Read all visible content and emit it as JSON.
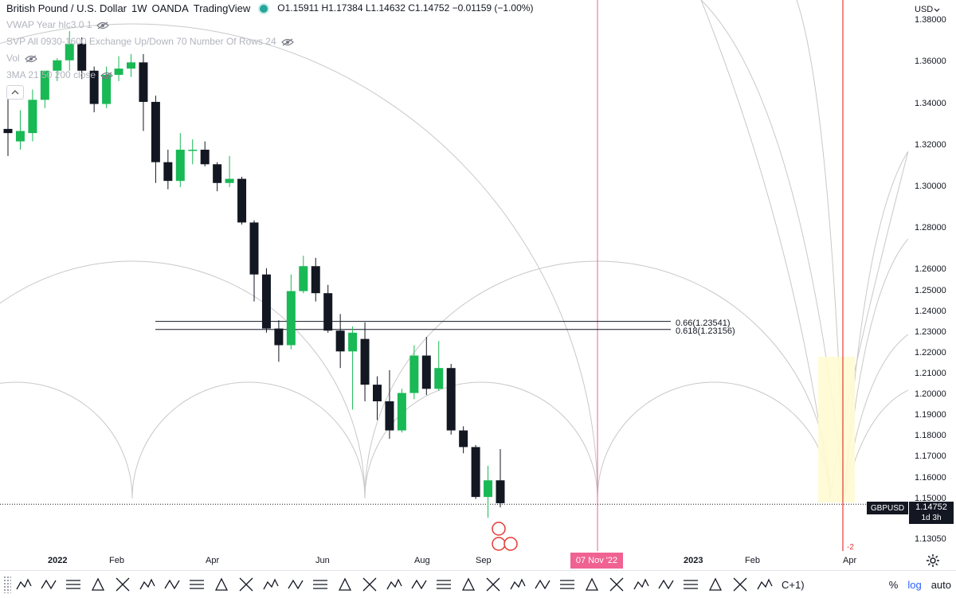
{
  "legend": {
    "title": "British Pound / U.S. Dollar",
    "interval": "1W",
    "broker": "OANDA",
    "platform": "TradingView",
    "ohlc": "O1.15911  H1.17384  L1.14632  C1.14752  −0.01159 (−1.00%)",
    "indicators": [
      "VWAP Year hlc3 0 1",
      "SVP All 0930-1600 Exchange Up/Down 70 Number Of Rows 24",
      "Vol",
      "3MA 21 50 200 close"
    ]
  },
  "currency": "USD",
  "symbol_badge": "GBPUSD",
  "last_price": "1.14752",
  "countdown": "1d 3h",
  "cursor_date": "07 Nov '22",
  "minus_label": "-2",
  "fib_levels": [
    {
      "label": "0.66(1.23541)",
      "value": 1.23541
    },
    {
      "label": "0.618(1.23156)",
      "value": 1.23156
    }
  ],
  "toolbar": {
    "tools": [
      "xabcd-1-5",
      "wxy-pattern",
      "wxyz-pattern",
      "abcd-pattern",
      "abc-pattern",
      "path-tool",
      "fib-channel",
      "rectangle",
      "callout",
      "horizontal-line",
      "trend-line",
      "pitchfork",
      "gann-fan",
      "elliott-wave",
      "fib-circles",
      "fib-spiral",
      "box",
      "long-position",
      "time-cycles",
      "fib-fan",
      "brush",
      "polyline",
      "arrow",
      "eraser",
      "projection",
      "zigzag",
      "candle-pattern",
      "head-shoulders",
      "bezier",
      "cycle",
      "triangle-pattern"
    ],
    "partial_label": "C+1)",
    "percent_label": "%",
    "log_label": "log",
    "auto_label": "auto"
  },
  "chart_data": {
    "type": "candlestick",
    "price_scale": {
      "min": 1.125,
      "max": 1.39,
      "ticks": [
        "1.38000",
        "1.36000",
        "1.34000",
        "1.32000",
        "1.30000",
        "1.28000",
        "1.26000",
        "1.25000",
        "1.24000",
        "1.23000",
        "1.22000",
        "1.21000",
        "1.20000",
        "1.19000",
        "1.18000",
        "1.17000",
        "1.16000",
        "1.15000",
        "1.14000",
        "1.13050"
      ]
    },
    "time_labels": [
      {
        "label": "2022",
        "bold": true
      },
      {
        "label": "Feb",
        "bold": false
      },
      {
        "label": "Apr",
        "bold": false
      },
      {
        "label": "Jun",
        "bold": false
      },
      {
        "label": "Aug",
        "bold": false
      },
      {
        "label": "Sep",
        "bold": false
      },
      {
        "label": "2023",
        "bold": true
      },
      {
        "label": "Feb",
        "bold": false
      },
      {
        "label": "Apr",
        "bold": false
      }
    ],
    "candles": [
      {
        "o": 1.328,
        "h": 1.343,
        "l": 1.315,
        "c": 1.326
      },
      {
        "o": 1.322,
        "h": 1.337,
        "l": 1.318,
        "c": 1.327
      },
      {
        "o": 1.326,
        "h": 1.347,
        "l": 1.322,
        "c": 1.342
      },
      {
        "o": 1.342,
        "h": 1.356,
        "l": 1.338,
        "c": 1.356
      },
      {
        "o": 1.356,
        "h": 1.362,
        "l": 1.351,
        "c": 1.361
      },
      {
        "o": 1.361,
        "h": 1.375,
        "l": 1.356,
        "c": 1.369
      },
      {
        "o": 1.369,
        "h": 1.372,
        "l": 1.352,
        "c": 1.356
      },
      {
        "o": 1.356,
        "h": 1.358,
        "l": 1.336,
        "c": 1.34
      },
      {
        "o": 1.34,
        "h": 1.358,
        "l": 1.338,
        "c": 1.354
      },
      {
        "o": 1.354,
        "h": 1.363,
        "l": 1.351,
        "c": 1.357
      },
      {
        "o": 1.357,
        "h": 1.364,
        "l": 1.353,
        "c": 1.36
      },
      {
        "o": 1.36,
        "h": 1.364,
        "l": 1.327,
        "c": 1.341
      },
      {
        "o": 1.341,
        "h": 1.344,
        "l": 1.302,
        "c": 1.312
      },
      {
        "o": 1.312,
        "h": 1.318,
        "l": 1.299,
        "c": 1.303
      },
      {
        "o": 1.303,
        "h": 1.326,
        "l": 1.3,
        "c": 1.318
      },
      {
        "o": 1.318,
        "h": 1.323,
        "l": 1.311,
        "c": 1.318
      },
      {
        "o": 1.318,
        "h": 1.322,
        "l": 1.31,
        "c": 1.311
      },
      {
        "o": 1.311,
        "h": 1.312,
        "l": 1.298,
        "c": 1.302
      },
      {
        "o": 1.302,
        "h": 1.315,
        "l": 1.3,
        "c": 1.304
      },
      {
        "o": 1.304,
        "h": 1.305,
        "l": 1.282,
        "c": 1.283
      },
      {
        "o": 1.283,
        "h": 1.284,
        "l": 1.245,
        "c": 1.258
      },
      {
        "o": 1.258,
        "h": 1.261,
        "l": 1.23,
        "c": 1.232
      },
      {
        "o": 1.232,
        "h": 1.236,
        "l": 1.216,
        "c": 1.224
      },
      {
        "o": 1.224,
        "h": 1.258,
        "l": 1.222,
        "c": 1.25
      },
      {
        "o": 1.25,
        "h": 1.267,
        "l": 1.249,
        "c": 1.262
      },
      {
        "o": 1.262,
        "h": 1.266,
        "l": 1.245,
        "c": 1.249
      },
      {
        "o": 1.249,
        "h": 1.253,
        "l": 1.23,
        "c": 1.231
      },
      {
        "o": 1.231,
        "h": 1.239,
        "l": 1.213,
        "c": 1.221
      },
      {
        "o": 1.221,
        "h": 1.233,
        "l": 1.193,
        "c": 1.23
      },
      {
        "o": 1.227,
        "h": 1.235,
        "l": 1.197,
        "c": 1.205
      },
      {
        "o": 1.205,
        "h": 1.209,
        "l": 1.188,
        "c": 1.197
      },
      {
        "o": 1.197,
        "h": 1.212,
        "l": 1.179,
        "c": 1.183
      },
      {
        "o": 1.183,
        "h": 1.203,
        "l": 1.182,
        "c": 1.201
      },
      {
        "o": 1.201,
        "h": 1.224,
        "l": 1.198,
        "c": 1.219
      },
      {
        "o": 1.219,
        "h": 1.228,
        "l": 1.2,
        "c": 1.203
      },
      {
        "o": 1.203,
        "h": 1.226,
        "l": 1.202,
        "c": 1.213
      },
      {
        "o": 1.213,
        "h": 1.215,
        "l": 1.181,
        "c": 1.183
      },
      {
        "o": 1.183,
        "h": 1.185,
        "l": 1.172,
        "c": 1.175
      },
      {
        "o": 1.175,
        "h": 1.176,
        "l": 1.15,
        "c": 1.151
      },
      {
        "o": 1.151,
        "h": 1.166,
        "l": 1.141,
        "c": 1.159
      },
      {
        "o": 1.159,
        "h": 1.174,
        "l": 1.146,
        "c": 1.148
      }
    ]
  }
}
